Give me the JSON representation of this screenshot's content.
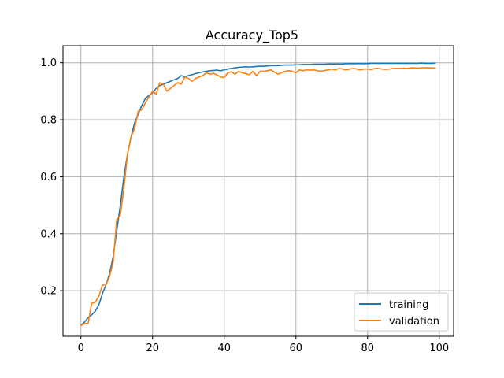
{
  "chart_data": {
    "type": "line",
    "title": "Accuracy_Top5",
    "xlabel": "",
    "ylabel": "",
    "xlim": [
      -5,
      104
    ],
    "ylim": [
      0.04,
      1.06
    ],
    "xticks": [
      0,
      20,
      40,
      60,
      80,
      100
    ],
    "yticks": [
      0.2,
      0.4,
      0.6,
      0.8,
      1.0
    ],
    "ytick_labels": [
      "0.2",
      "0.4",
      "0.6",
      "0.8",
      "1.0"
    ],
    "xtick_labels": [
      "0",
      "20",
      "40",
      "60",
      "80",
      "100"
    ],
    "grid": true,
    "legend_position": "lower-right",
    "x": [
      0,
      1,
      2,
      3,
      4,
      5,
      6,
      7,
      8,
      9,
      10,
      11,
      12,
      13,
      14,
      15,
      16,
      17,
      18,
      19,
      20,
      21,
      22,
      23,
      24,
      25,
      26,
      27,
      28,
      29,
      30,
      31,
      32,
      33,
      34,
      35,
      36,
      37,
      38,
      39,
      40,
      41,
      42,
      43,
      44,
      45,
      46,
      47,
      48,
      49,
      50,
      51,
      52,
      53,
      54,
      55,
      56,
      57,
      58,
      59,
      60,
      61,
      62,
      63,
      64,
      65,
      66,
      67,
      68,
      69,
      70,
      71,
      72,
      73,
      74,
      75,
      76,
      77,
      78,
      79,
      80,
      81,
      82,
      83,
      84,
      85,
      86,
      87,
      88,
      89,
      90,
      91,
      92,
      93,
      94,
      95,
      96,
      97,
      98,
      99
    ],
    "series": [
      {
        "name": "training",
        "color": "#1f77b4",
        "values": [
          0.078,
          0.09,
          0.105,
          0.115,
          0.128,
          0.15,
          0.19,
          0.22,
          0.26,
          0.32,
          0.41,
          0.5,
          0.6,
          0.68,
          0.74,
          0.79,
          0.82,
          0.85,
          0.875,
          0.885,
          0.895,
          0.91,
          0.92,
          0.925,
          0.93,
          0.935,
          0.94,
          0.945,
          0.955,
          0.95,
          0.955,
          0.958,
          0.962,
          0.965,
          0.968,
          0.97,
          0.972,
          0.973,
          0.974,
          0.972,
          0.975,
          0.978,
          0.98,
          0.982,
          0.984,
          0.985,
          0.986,
          0.985,
          0.986,
          0.987,
          0.988,
          0.988,
          0.989,
          0.99,
          0.99,
          0.99,
          0.991,
          0.992,
          0.992,
          0.992,
          0.993,
          0.993,
          0.994,
          0.994,
          0.994,
          0.995,
          0.995,
          0.995,
          0.995,
          0.996,
          0.996,
          0.996,
          0.996,
          0.996,
          0.997,
          0.997,
          0.997,
          0.997,
          0.997,
          0.997,
          0.997,
          0.998,
          0.998,
          0.998,
          0.998,
          0.998,
          0.998,
          0.998,
          0.998,
          0.998,
          0.998,
          0.998,
          0.998,
          0.998,
          0.998,
          0.999,
          0.998,
          0.998,
          0.998,
          0.999
        ]
      },
      {
        "name": "validation",
        "color": "#ff7f0e",
        "values": [
          0.077,
          0.085,
          0.085,
          0.155,
          0.16,
          0.18,
          0.22,
          0.22,
          0.25,
          0.3,
          0.45,
          0.465,
          0.56,
          0.68,
          0.74,
          0.77,
          0.83,
          0.835,
          0.86,
          0.88,
          0.9,
          0.89,
          0.93,
          0.925,
          0.9,
          0.91,
          0.92,
          0.93,
          0.925,
          0.95,
          0.945,
          0.935,
          0.945,
          0.95,
          0.955,
          0.965,
          0.96,
          0.963,
          0.957,
          0.95,
          0.948,
          0.965,
          0.968,
          0.96,
          0.97,
          0.965,
          0.962,
          0.958,
          0.97,
          0.955,
          0.97,
          0.97,
          0.972,
          0.975,
          0.968,
          0.96,
          0.965,
          0.97,
          0.972,
          0.97,
          0.965,
          0.975,
          0.972,
          0.975,
          0.974,
          0.975,
          0.972,
          0.97,
          0.973,
          0.975,
          0.978,
          0.975,
          0.98,
          0.978,
          0.975,
          0.978,
          0.98,
          0.978,
          0.975,
          0.978,
          0.978,
          0.976,
          0.98,
          0.98,
          0.978,
          0.977,
          0.978,
          0.98,
          0.98,
          0.98,
          0.981,
          0.98,
          0.982,
          0.982,
          0.981,
          0.982,
          0.983,
          0.982,
          0.982,
          0.981
        ]
      }
    ]
  }
}
